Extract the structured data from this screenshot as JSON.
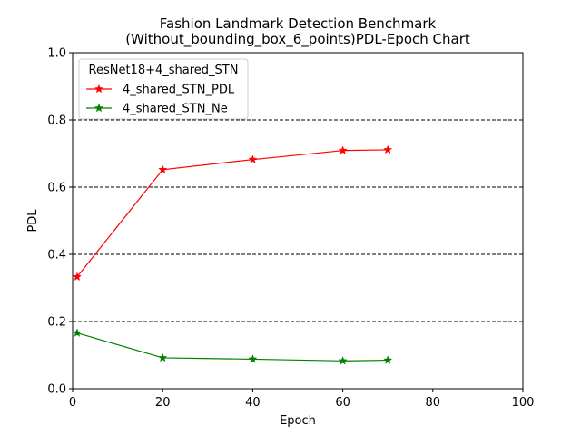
{
  "chart_data": {
    "type": "line",
    "title_line1": "Fashion Landmark Detection Benchmark",
    "title_line2": "(Without_bounding_box_6_points)PDL-Epoch Chart",
    "xlabel": "Epoch",
    "ylabel": "PDL",
    "xlim": [
      0,
      100
    ],
    "ylim": [
      0,
      1.0
    ],
    "x_ticks": [
      "0",
      "20",
      "40",
      "60",
      "80",
      "100"
    ],
    "y_ticks": [
      "0.0",
      "0.2",
      "0.4",
      "0.6",
      "0.8",
      "1.0"
    ],
    "grid": "horizontal dashed",
    "legend_title": "ResNet18+4_shared_STN",
    "legend_position": "top-left",
    "x": [
      1,
      20,
      40,
      60,
      70
    ],
    "series": [
      {
        "name": "4_shared_STN_PDL",
        "color": "#ff0000",
        "marker": "star",
        "values": [
          0.333,
          0.652,
          0.682,
          0.709,
          0.711
        ]
      },
      {
        "name": "4_shared_STN_Ne",
        "color": "#008000",
        "marker": "star",
        "values": [
          0.166,
          0.092,
          0.088,
          0.083,
          0.085
        ]
      }
    ]
  }
}
